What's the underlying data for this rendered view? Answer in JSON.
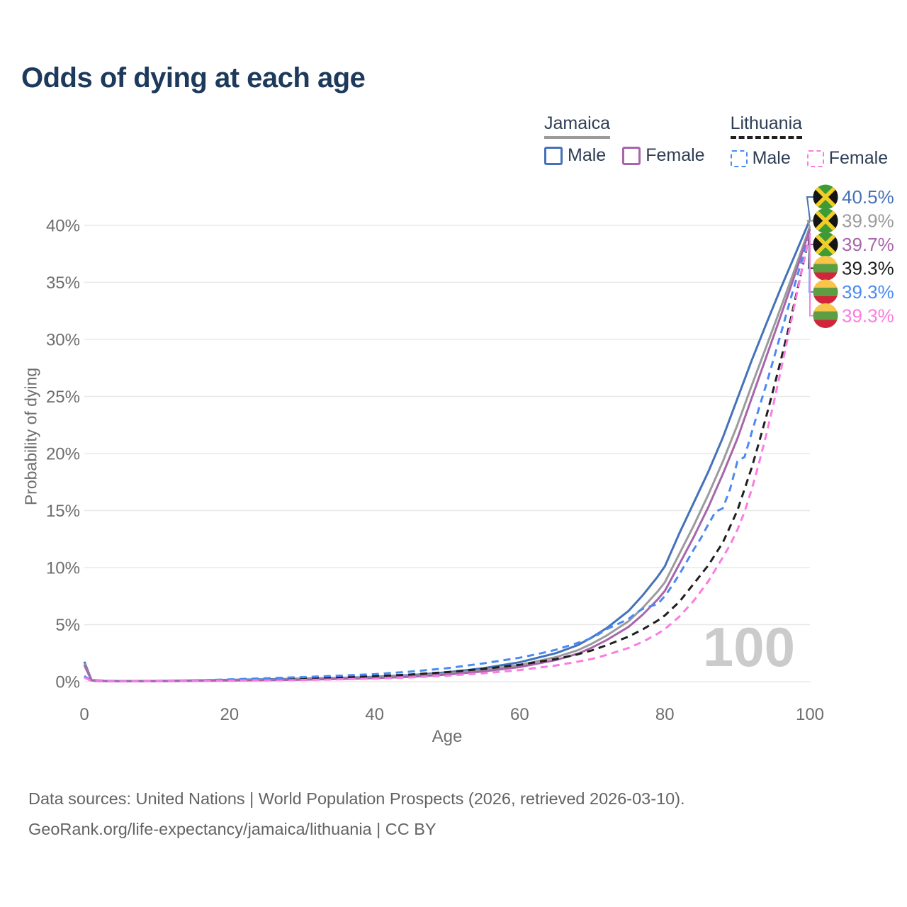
{
  "title": "Odds of dying at each age",
  "watermark": "100",
  "colors": {
    "title": "#1d3a5c",
    "axis_text": "#6e6e6e",
    "gridline": "#e8e8e8",
    "jamaica_male": "#4472b9",
    "jamaica_both": "#9b9b9b",
    "jamaica_female": "#a766ab",
    "lithuania_both": "#1f1f1f",
    "lithuania_male": "#4a8af4",
    "lithuania_female": "#fb7ce1"
  },
  "legend": {
    "groups": [
      {
        "label": "Jamaica",
        "line_style": "solid",
        "line_color": "#9b9b9b",
        "items": [
          {
            "label": "Male",
            "color": "#4472b9",
            "style": "solid"
          },
          {
            "label": "Female",
            "color": "#a766ab",
            "style": "solid"
          }
        ]
      },
      {
        "label": "Lithuania",
        "line_style": "dashed",
        "line_color": "#1f1f1f",
        "items": [
          {
            "label": "Male",
            "color": "#4a8af4",
            "style": "dashed"
          },
          {
            "label": "Female",
            "color": "#fb7ce1",
            "style": "dashed"
          }
        ]
      }
    ]
  },
  "footer": {
    "line1": "Data sources: United Nations | World Population Prospects (2026, retrieved 2026-03-10).",
    "line2": "GeoRank.org/life-expectancy/jamaica/lithuania | CC BY"
  },
  "chart_data": {
    "type": "line",
    "title": "Odds of dying at each age",
    "xlabel": "Age",
    "ylabel": "Probability of dying",
    "unit": "percent probability of dying at each age",
    "xlim": [
      0,
      100
    ],
    "ylim_pct": [
      0,
      42
    ],
    "grid": true,
    "legend_position": "top-right",
    "watermark_age": "100",
    "x_ticks": [
      {
        "value": 0,
        "label": "0"
      },
      {
        "value": 20,
        "label": "20"
      },
      {
        "value": 40,
        "label": "40"
      },
      {
        "value": 60,
        "label": "60"
      },
      {
        "value": 80,
        "label": "80"
      },
      {
        "value": 100,
        "label": "100"
      }
    ],
    "y_ticks": [
      {
        "value": 0,
        "label": "0%"
      },
      {
        "value": 5,
        "label": "5%"
      },
      {
        "value": 10,
        "label": "10%"
      },
      {
        "value": 15,
        "label": "15%"
      },
      {
        "value": 20,
        "label": "20%"
      },
      {
        "value": 25,
        "label": "25%"
      },
      {
        "value": 30,
        "label": "30%"
      },
      {
        "value": 35,
        "label": "35%"
      },
      {
        "value": 40,
        "label": "40%"
      }
    ],
    "series": [
      {
        "id": "jamaica-male",
        "name": "Jamaica Male",
        "country": "Jamaica",
        "sex": "Male",
        "color": "#4472b9",
        "line_style": "solid",
        "flag_icon": "jamaica-flag-icon",
        "end_label": "40.5%",
        "points": [
          [
            0,
            1.75
          ],
          [
            1,
            0.14
          ],
          [
            3,
            0.06
          ],
          [
            5,
            0.05
          ],
          [
            10,
            0.06
          ],
          [
            15,
            0.11
          ],
          [
            20,
            0.16
          ],
          [
            25,
            0.21
          ],
          [
            30,
            0.26
          ],
          [
            35,
            0.33
          ],
          [
            40,
            0.43
          ],
          [
            45,
            0.58
          ],
          [
            50,
            0.82
          ],
          [
            55,
            1.18
          ],
          [
            60,
            1.7
          ],
          [
            65,
            2.5
          ],
          [
            68,
            3.2
          ],
          [
            70,
            3.9
          ],
          [
            72,
            4.7
          ],
          [
            75,
            6.2
          ],
          [
            77,
            7.6
          ],
          [
            79,
            9.2
          ],
          [
            80,
            10.1
          ],
          [
            82,
            13.0
          ],
          [
            84,
            15.7
          ],
          [
            86,
            18.4
          ],
          [
            88,
            21.4
          ],
          [
            90,
            24.8
          ],
          [
            92,
            28.2
          ],
          [
            94,
            31.4
          ],
          [
            96,
            34.5
          ],
          [
            98,
            37.5
          ],
          [
            100,
            40.5
          ]
        ]
      },
      {
        "id": "jamaica-both",
        "name": "Jamaica Both sexes",
        "country": "Jamaica",
        "sex": "Both",
        "color": "#9b9b9b",
        "line_style": "solid",
        "flag_icon": "jamaica-flag-icon",
        "end_label": "39.9%",
        "points": [
          [
            0,
            1.6
          ],
          [
            1,
            0.12
          ],
          [
            3,
            0.05
          ],
          [
            5,
            0.04
          ],
          [
            10,
            0.05
          ],
          [
            15,
            0.09
          ],
          [
            20,
            0.13
          ],
          [
            25,
            0.17
          ],
          [
            30,
            0.22
          ],
          [
            35,
            0.28
          ],
          [
            40,
            0.37
          ],
          [
            45,
            0.5
          ],
          [
            50,
            0.71
          ],
          [
            55,
            1.02
          ],
          [
            60,
            1.46
          ],
          [
            65,
            2.15
          ],
          [
            68,
            2.75
          ],
          [
            70,
            3.35
          ],
          [
            72,
            4.05
          ],
          [
            75,
            5.3
          ],
          [
            77,
            6.5
          ],
          [
            79,
            7.9
          ],
          [
            80,
            8.7
          ],
          [
            82,
            11.2
          ],
          [
            84,
            13.7
          ],
          [
            86,
            16.4
          ],
          [
            88,
            19.3
          ],
          [
            90,
            22.5
          ],
          [
            92,
            26.0
          ],
          [
            94,
            29.4
          ],
          [
            96,
            32.8
          ],
          [
            98,
            36.3
          ],
          [
            100,
            39.9
          ]
        ]
      },
      {
        "id": "jamaica-female",
        "name": "Jamaica Female",
        "country": "Jamaica",
        "sex": "Female",
        "color": "#a766ab",
        "line_style": "solid",
        "flag_icon": "jamaica-flag-icon",
        "end_label": "39.7%",
        "points": [
          [
            0,
            1.45
          ],
          [
            1,
            0.1
          ],
          [
            3,
            0.04
          ],
          [
            5,
            0.04
          ],
          [
            10,
            0.04
          ],
          [
            15,
            0.07
          ],
          [
            20,
            0.1
          ],
          [
            25,
            0.13
          ],
          [
            30,
            0.17
          ],
          [
            35,
            0.23
          ],
          [
            40,
            0.31
          ],
          [
            45,
            0.43
          ],
          [
            50,
            0.62
          ],
          [
            55,
            0.9
          ],
          [
            60,
            1.28
          ],
          [
            65,
            1.9
          ],
          [
            68,
            2.45
          ],
          [
            70,
            3.0
          ],
          [
            72,
            3.65
          ],
          [
            75,
            4.8
          ],
          [
            77,
            5.9
          ],
          [
            79,
            7.2
          ],
          [
            80,
            7.95
          ],
          [
            82,
            10.3
          ],
          [
            84,
            12.7
          ],
          [
            86,
            15.3
          ],
          [
            88,
            18.2
          ],
          [
            90,
            21.3
          ],
          [
            92,
            24.9
          ],
          [
            94,
            28.5
          ],
          [
            96,
            32.1
          ],
          [
            98,
            35.8
          ],
          [
            100,
            39.7
          ]
        ]
      },
      {
        "id": "lithuania-both",
        "name": "Lithuania Both sexes",
        "country": "Lithuania",
        "sex": "Both",
        "color": "#1f1f1f",
        "line_style": "dashed",
        "flag_icon": "lithuania-flag-icon",
        "end_label": "39.3%",
        "points": [
          [
            0,
            0.45
          ],
          [
            1,
            0.05
          ],
          [
            5,
            0.03
          ],
          [
            10,
            0.04
          ],
          [
            15,
            0.08
          ],
          [
            20,
            0.15
          ],
          [
            25,
            0.22
          ],
          [
            30,
            0.3
          ],
          [
            35,
            0.38
          ],
          [
            40,
            0.48
          ],
          [
            45,
            0.63
          ],
          [
            50,
            0.84
          ],
          [
            55,
            1.12
          ],
          [
            60,
            1.48
          ],
          [
            65,
            1.98
          ],
          [
            68,
            2.4
          ],
          [
            70,
            2.75
          ],
          [
            72,
            3.2
          ],
          [
            75,
            3.95
          ],
          [
            77,
            4.6
          ],
          [
            79,
            5.35
          ],
          [
            80,
            5.8
          ],
          [
            82,
            7.0
          ],
          [
            84,
            8.6
          ],
          [
            86,
            10.2
          ],
          [
            88,
            12.2
          ],
          [
            90,
            15.0
          ],
          [
            92,
            18.8
          ],
          [
            93,
            21.0
          ],
          [
            94,
            23.3
          ],
          [
            95,
            25.7
          ],
          [
            96,
            28.2
          ],
          [
            97,
            30.8
          ],
          [
            98,
            33.6
          ],
          [
            99,
            36.4
          ],
          [
            100,
            39.3
          ]
        ]
      },
      {
        "id": "lithuania-male",
        "name": "Lithuania Male",
        "country": "Lithuania",
        "sex": "Male",
        "color": "#4a8af4",
        "line_style": "dashed",
        "flag_icon": "lithuania-flag-icon",
        "end_label": "39.3%",
        "points": [
          [
            0,
            0.5
          ],
          [
            1,
            0.06
          ],
          [
            5,
            0.03
          ],
          [
            10,
            0.05
          ],
          [
            15,
            0.1
          ],
          [
            20,
            0.2
          ],
          [
            25,
            0.3
          ],
          [
            30,
            0.4
          ],
          [
            35,
            0.52
          ],
          [
            40,
            0.66
          ],
          [
            45,
            0.88
          ],
          [
            50,
            1.18
          ],
          [
            55,
            1.6
          ],
          [
            60,
            2.1
          ],
          [
            63,
            2.5
          ],
          [
            65,
            2.8
          ],
          [
            67,
            3.2
          ],
          [
            69,
            3.6
          ],
          [
            70,
            3.85
          ],
          [
            71,
            4.2
          ],
          [
            72,
            4.6
          ],
          [
            73,
            4.9
          ],
          [
            74,
            5.2
          ],
          [
            75,
            5.5
          ],
          [
            76,
            6.0
          ],
          [
            77,
            6.4
          ],
          [
            78,
            6.6
          ],
          [
            79,
            6.8
          ],
          [
            80,
            7.5
          ],
          [
            81,
            8.4
          ],
          [
            82,
            9.4
          ],
          [
            83,
            10.5
          ],
          [
            84,
            11.6
          ],
          [
            85,
            12.6
          ],
          [
            86,
            13.8
          ],
          [
            87,
            14.9
          ],
          [
            88,
            15.2
          ],
          [
            89,
            16.9
          ],
          [
            90,
            19.3
          ],
          [
            91,
            19.7
          ],
          [
            92,
            21.9
          ],
          [
            93,
            24.0
          ],
          [
            94,
            26.1
          ],
          [
            95,
            28.3
          ],
          [
            96,
            30.5
          ],
          [
            97,
            32.8
          ],
          [
            98,
            35.0
          ],
          [
            99,
            37.2
          ],
          [
            100,
            39.3
          ]
        ]
      },
      {
        "id": "lithuania-female",
        "name": "Lithuania Female",
        "country": "Lithuania",
        "sex": "Female",
        "color": "#fb7ce1",
        "line_style": "dashed",
        "flag_icon": "lithuania-flag-icon",
        "end_label": "39.3%",
        "points": [
          [
            0,
            0.38
          ],
          [
            1,
            0.04
          ],
          [
            5,
            0.02
          ],
          [
            10,
            0.03
          ],
          [
            15,
            0.05
          ],
          [
            20,
            0.08
          ],
          [
            25,
            0.11
          ],
          [
            30,
            0.15
          ],
          [
            35,
            0.2
          ],
          [
            40,
            0.27
          ],
          [
            45,
            0.37
          ],
          [
            50,
            0.52
          ],
          [
            55,
            0.74
          ],
          [
            60,
            1.02
          ],
          [
            65,
            1.42
          ],
          [
            68,
            1.75
          ],
          [
            70,
            2.0
          ],
          [
            72,
            2.35
          ],
          [
            75,
            2.95
          ],
          [
            77,
            3.5
          ],
          [
            79,
            4.2
          ],
          [
            80,
            4.6
          ],
          [
            82,
            5.7
          ],
          [
            84,
            7.1
          ],
          [
            86,
            8.8
          ],
          [
            88,
            10.9
          ],
          [
            89,
            12.0
          ],
          [
            90,
            13.3
          ],
          [
            91,
            14.9
          ],
          [
            92,
            16.9
          ],
          [
            93,
            19.2
          ],
          [
            94,
            21.7
          ],
          [
            95,
            24.4
          ],
          [
            96,
            27.3
          ],
          [
            97,
            30.3
          ],
          [
            98,
            33.4
          ],
          [
            99,
            36.4
          ],
          [
            100,
            39.3
          ]
        ]
      }
    ]
  }
}
